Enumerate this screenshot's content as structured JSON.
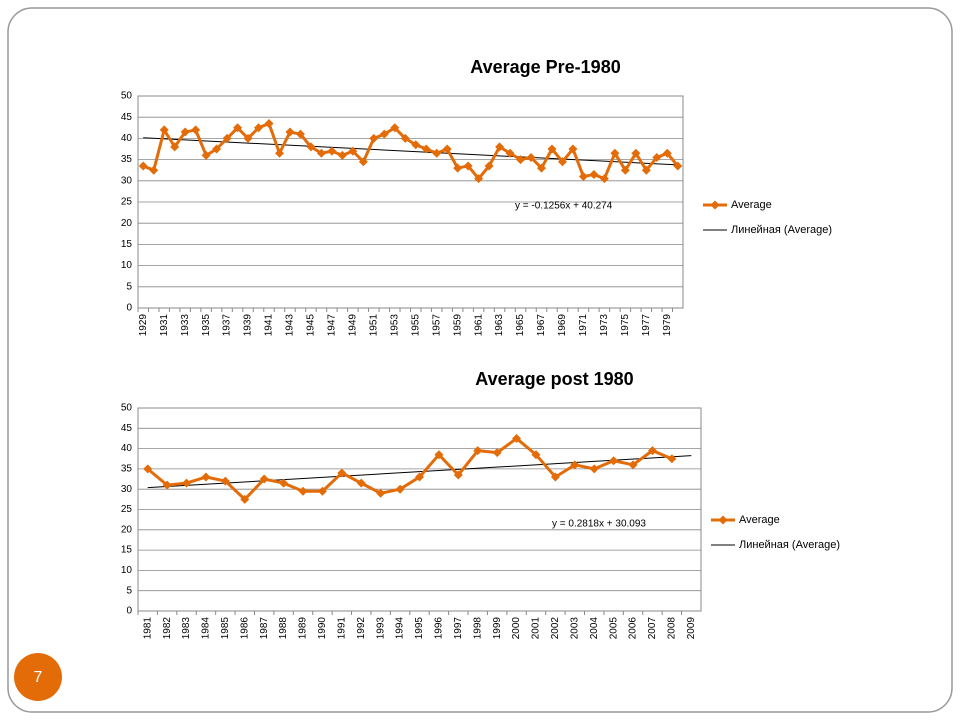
{
  "slide_number": "7",
  "chart_data": [
    {
      "type": "line",
      "title": "Average Pre-1980",
      "categories": [
        "1929",
        null,
        "1931",
        null,
        "1933",
        null,
        "1935",
        null,
        "1937",
        null,
        "1939",
        null,
        "1941",
        null,
        "1943",
        null,
        "1945",
        null,
        "1947",
        null,
        "1949",
        null,
        "1951",
        null,
        "1953",
        null,
        "1955",
        null,
        "1957",
        null,
        "1959",
        null,
        "1961",
        null,
        "1963",
        null,
        "1965",
        null,
        "1967",
        null,
        "1969",
        null,
        "1971",
        null,
        "1973",
        null,
        "1975",
        null,
        "1977",
        null,
        "1979",
        null
      ],
      "series": [
        {
          "name": "Average",
          "color": "#e36c09",
          "values": [
            33.5,
            32.5,
            42,
            38,
            41.5,
            42,
            36,
            37.5,
            40,
            42.5,
            40,
            42.5,
            43.5,
            36.5,
            41.5,
            41,
            38,
            36.5,
            37,
            36,
            37,
            34.5,
            40,
            41,
            42.5,
            40,
            38.5,
            37.5,
            36.5,
            37.5,
            33,
            33.5,
            30.5,
            33.5,
            38,
            36.5,
            35,
            35.5,
            33,
            37.5,
            34.5,
            37.5,
            31,
            31.5,
            30.5,
            36.5,
            32.5,
            36.5,
            32.5,
            35.5,
            36.5,
            33.5
          ]
        }
      ],
      "trendline": {
        "name": "Линейная (Average)",
        "color": "#000000",
        "slope": -0.1256,
        "intercept": 40.274,
        "equation": "y = -0.1256x + 40.274"
      },
      "ylim": [
        0,
        50
      ],
      "yticks": [
        0,
        5,
        10,
        15,
        20,
        25,
        30,
        35,
        40,
        45,
        50
      ],
      "grid": true,
      "legend": "right"
    },
    {
      "type": "line",
      "title": "Average post 1980",
      "categories": [
        "1981",
        "1982",
        "1983",
        "1984",
        "1985",
        "1986",
        "1987",
        "1988",
        "1989",
        "1990",
        "1991",
        "1992",
        "1993",
        "1994",
        "1995",
        "1996",
        "1997",
        "1998",
        "1999",
        "2000",
        "2001",
        "2002",
        "2003",
        "2004",
        "2005",
        "2006",
        "2007",
        "2008",
        "2009"
      ],
      "series": [
        {
          "name": "Average",
          "color": "#e36c09",
          "values": [
            35,
            31,
            31.5,
            33,
            32,
            27.5,
            32.5,
            31.5,
            29.5,
            29.5,
            34,
            31.5,
            29,
            30,
            33,
            38.5,
            33.5,
            39.5,
            39,
            42.5,
            38.5,
            33,
            36,
            35,
            37,
            36,
            39.5,
            37.5,
            null
          ]
        }
      ],
      "trendline": {
        "name": "Линейная (Average)",
        "color": "#000000",
        "slope": 0.2818,
        "intercept": 30.093,
        "equation": "y = 0.2818x + 30.093"
      },
      "ylim": [
        0,
        50
      ],
      "yticks": [
        0,
        5,
        10,
        15,
        20,
        25,
        30,
        35,
        40,
        45,
        50
      ],
      "grid": true,
      "legend": "right"
    }
  ]
}
